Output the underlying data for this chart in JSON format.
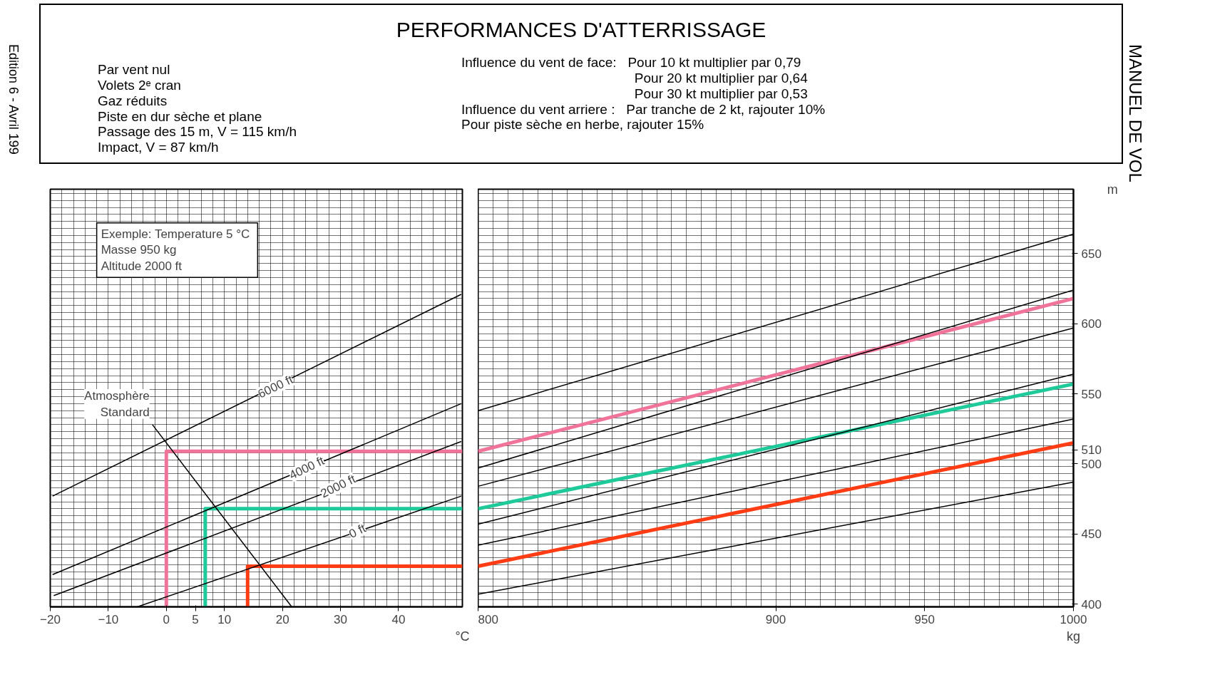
{
  "chart_data": [
    {
      "type": "line",
      "xlabel": "°C",
      "xlim": [
        -20,
        51
      ],
      "ylim": [
        398,
        696
      ],
      "xticks": [
        -20,
        -10,
        0,
        {
          "value": 5,
          "label": "5"
        },
        10,
        20,
        30,
        40
      ],
      "yticks": [
        400,
        450,
        500,
        510,
        550,
        600,
        650
      ],
      "tick_labels": "x",
      "grid": true,
      "series": [
        {
          "color": "#f0739a",
          "x": [
            0,
            0,
            51
          ],
          "values": [
            398,
            509,
            509
          ]
        },
        {
          "color": "#1ec99a",
          "x": [
            6.7,
            6.7,
            51
          ],
          "values": [
            398,
            468,
            468
          ]
        },
        {
          "color": "#ff3c14",
          "x": [
            14,
            14,
            51
          ],
          "values": [
            398,
            427,
            427
          ]
        },
        {
          "color": "#000000",
          "x": [
            -2.4,
            21.6
          ],
          "values": [
            528,
            398
          ]
        },
        {
          "color": "#000000",
          "x": [
            -19.6,
            50.8
          ],
          "values": [
            477,
            621
          ]
        },
        {
          "color": "#000000",
          "x": [
            -19.6,
            50.8
          ],
          "values": [
            421,
            543
          ]
        },
        {
          "color": "#000000",
          "x": [
            -19.4,
            50.8
          ],
          "values": [
            406,
            516
          ]
        },
        {
          "color": "#000000",
          "x": [
            -5,
            50.8
          ],
          "values": [
            398,
            477
          ]
        }
      ],
      "annotations": [
        "Par vent nul\nVolets 2ᵉ cran\nGaz réduits\nPiste en dur sèche et plane\nPassage des 15 m, V = 115 km/h\nImpact, V = 87 km/h",
        "Influence du vent de face:   Pour 10 kt multiplier par 0,79\n                                              Pour 20 kt multiplier par 0,64\n                                              Pour 30 kt multiplier par 0,53\nInfluence du vent arriere :   Par tranche de 2 kt, rajouter 10%\nPour piste sèche en herbe, rajouter 15%",
        "Edition 6 - Avril 199",
        "Exemple:  Temperature 5 °C\n                 Masse 950 kg\n                 Altitude 2000 ft",
        {
          "text": "Atmosphère\nStandard",
          "x": -2.4,
          "y": 528
        },
        {
          "text": "6000 ft",
          "x": 18.8,
          "y": 555
        },
        {
          "text": "4000 ft",
          "x": 24.2,
          "y": 497
        },
        {
          "text": "2000 ft",
          "x": 29.6,
          "y": 484
        },
        {
          "text": "0 ft",
          "x": 32.9,
          "y": 452
        }
      ]
    },
    {
      "type": "line",
      "title": "PERFORMANCES D'ATTERRISSAGE",
      "xlabel": "kg",
      "ylabel": "m",
      "xlim": [
        800,
        1000
      ],
      "ylim": [
        398,
        696
      ],
      "xticks": [
        800,
        900,
        950,
        1000
      ],
      "yticks": [
        400,
        450,
        500,
        510,
        550,
        600,
        650
      ],
      "grid": true,
      "series": [
        {
          "color": "#f0739a",
          "values": [
            509,
            618
          ]
        },
        {
          "color": "#1ec99a",
          "values": [
            468,
            557
          ]
        },
        {
          "color": "#ff3c14",
          "values": [
            427,
            515
          ]
        },
        {
          "color": "#000000",
          "values": [
            538,
            664
          ]
        },
        {
          "color": "#000000",
          "values": [
            497,
            624
          ]
        },
        {
          "color": "#000000",
          "values": [
            484,
            597
          ]
        },
        {
          "color": "#000000",
          "values": [
            457,
            564
          ]
        },
        {
          "color": "#000000",
          "values": [
            442,
            532
          ]
        },
        {
          "color": "#000000",
          "values": [
            407,
            487
          ]
        }
      ],
      "x": [
        800,
        1000
      ],
      "annotations": [
        "MANUEL DE VOL"
      ]
    }
  ]
}
